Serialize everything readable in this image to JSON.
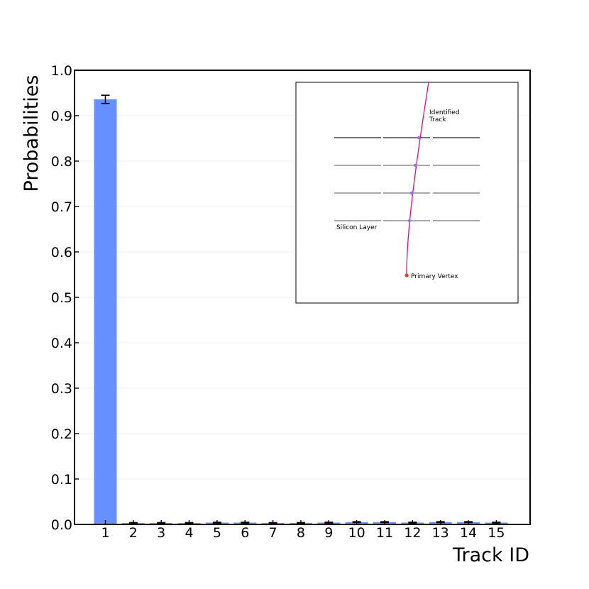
{
  "chart_data": {
    "type": "bar",
    "xlabel": "Track ID",
    "ylabel": "Probabilities",
    "ylim": [
      0.0,
      1.0
    ],
    "yticks": [
      "0.0",
      "0.1",
      "0.2",
      "0.3",
      "0.4",
      "0.5",
      "0.6",
      "0.7",
      "0.8",
      "0.9",
      "1.0"
    ],
    "categories": [
      "1",
      "2",
      "3",
      "4",
      "5",
      "6",
      "7",
      "8",
      "9",
      "10",
      "11",
      "12",
      "13",
      "14",
      "15"
    ],
    "values": [
      0.936,
      0.003,
      0.003,
      0.003,
      0.004,
      0.004,
      0.003,
      0.003,
      0.004,
      0.005,
      0.005,
      0.004,
      0.005,
      0.005,
      0.004
    ],
    "errors": [
      0.009,
      0.001,
      0.001,
      0.001,
      0.001,
      0.001,
      0.001,
      0.001,
      0.001,
      0.001,
      0.001,
      0.001,
      0.001,
      0.001,
      0.001
    ],
    "bar_color": "#6690ff",
    "grid": true,
    "inset": {
      "labels": {
        "identified_track": [
          "Identified",
          "Track"
        ],
        "silicon_layer": "Silicon Layer",
        "primary_vertex": "Primary Vertex"
      },
      "track_color": "#e0107a",
      "hit_color": "#8877ee",
      "vertex_color": "#ff3b1f",
      "layer_color": "#777777"
    }
  }
}
